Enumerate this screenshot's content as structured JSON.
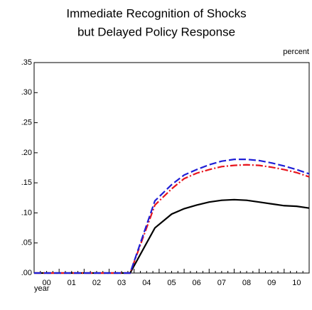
{
  "chart_data": {
    "type": "line",
    "title": [
      "Immediate Recognition of Shocks",
      "but Delayed Policy Response"
    ],
    "y_unit": "percent",
    "x_label": "year",
    "categories": [
      "00",
      "01",
      "02",
      "03",
      "04",
      "05",
      "06",
      "07",
      "08",
      "09",
      "10"
    ],
    "x": [
      0,
      3.84,
      4.83,
      5.5,
      6,
      6.5,
      7,
      7.5,
      8,
      8.5,
      9,
      9.5,
      10,
      10.5,
      11
    ],
    "xlim": [
      0,
      11
    ],
    "ylim": [
      0,
      0.35
    ],
    "yticks": [
      {
        "value": 0,
        "label": ".00"
      },
      {
        "value": 0.05,
        "label": ".05"
      },
      {
        "value": 0.1,
        "label": ".10"
      },
      {
        "value": 0.15,
        "label": ".15"
      },
      {
        "value": 0.2,
        "label": ".20"
      },
      {
        "value": 0.25,
        "label": ".25"
      },
      {
        "value": 0.3,
        "label": ".30"
      },
      {
        "value": 0.35,
        "label": ".35"
      }
    ],
    "series": [
      {
        "color": "#000000",
        "style": "solid",
        "values": [
          0,
          0,
          0.075,
          0.098,
          0.107,
          0.113,
          0.118,
          0.121,
          0.122,
          0.121,
          0.118,
          0.115,
          0.112,
          0.111,
          0.108
        ]
      },
      {
        "color": "#e8141c",
        "style": "dashdot",
        "values": [
          0,
          0,
          0.113,
          0.14,
          0.157,
          0.166,
          0.172,
          0.177,
          0.179,
          0.18,
          0.179,
          0.176,
          0.172,
          0.167,
          0.16
        ]
      },
      {
        "color": "#1f1fd6",
        "style": "dashed",
        "values": [
          0,
          0,
          0.12,
          0.147,
          0.163,
          0.172,
          0.18,
          0.186,
          0.189,
          0.189,
          0.187,
          0.183,
          0.178,
          0.172,
          0.165
        ]
      }
    ]
  }
}
